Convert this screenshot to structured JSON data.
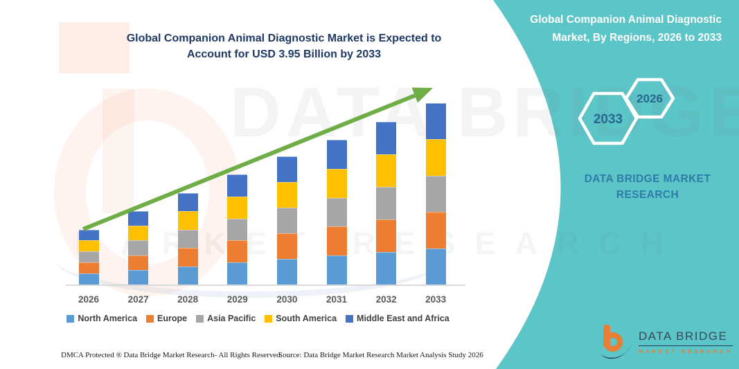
{
  "header": {
    "left_title": "Global Companion Animal Diagnostic Market is Expected to Account for USD 3.95 Billion by 2033",
    "right_title": "Global Companion Animal Diagnostic Market, By Regions, 2026 to 2033"
  },
  "badges": {
    "back_year": "2033",
    "front_year": "2026"
  },
  "brand": {
    "panel_text": "DATA BRIDGE MARKET RESEARCH",
    "logo_title": "DATA BRIDGE",
    "logo_subtitle": "MARKET RESEARCH"
  },
  "watermark": {
    "line1": "DATA BRIDGE",
    "line2": "MARKET RESEARCH"
  },
  "footer": {
    "left": "DMCA Protected ® Data Bridge Market Research-  All Rights Reserved.",
    "source": "Source: Data Bridge Market Research  Market Analysis Study 2026"
  },
  "colors": {
    "teal_panel": "#5BC5C7",
    "title_navy": "#1F3864",
    "hexagon_year": "#27688E",
    "panel_brand_blue": "#2E7CA8",
    "arrow_green": "#6FAE47",
    "axis_gray": "#D9D9D9",
    "logo_orange": "#E87F35",
    "logo_navy": "#203A64"
  },
  "chart_data": {
    "type": "bar",
    "stacked": true,
    "title": "Global Companion Animal Diagnostic Market is Expected to Account for USD 3.95 Billion by 2033",
    "unit": "USD Billion (estimated from bar heights; 2033 total labeled as 3.95)",
    "categories": [
      "2026",
      "2027",
      "2028",
      "2029",
      "2030",
      "2031",
      "2032",
      "2033"
    ],
    "series": [
      {
        "name": "North America",
        "color": "#5B9BD5",
        "values": [
          0.24,
          0.32,
          0.4,
          0.48,
          0.56,
          0.63,
          0.71,
          0.79
        ]
      },
      {
        "name": "Europe",
        "color": "#ED7D31",
        "values": [
          0.24,
          0.32,
          0.4,
          0.48,
          0.56,
          0.63,
          0.71,
          0.79
        ]
      },
      {
        "name": "Asia Pacific",
        "color": "#A6A6A6",
        "values": [
          0.24,
          0.32,
          0.4,
          0.48,
          0.56,
          0.63,
          0.71,
          0.79
        ]
      },
      {
        "name": "South America",
        "color": "#FFC000",
        "values": [
          0.24,
          0.32,
          0.4,
          0.48,
          0.56,
          0.63,
          0.71,
          0.79
        ]
      },
      {
        "name": "Middle East and Africa",
        "color": "#4472C4",
        "values": [
          0.24,
          0.32,
          0.4,
          0.48,
          0.56,
          0.63,
          0.71,
          0.79
        ]
      }
    ],
    "totals_estimated": [
      1.2,
      1.6,
      2.0,
      2.4,
      2.8,
      3.15,
      3.55,
      3.95
    ],
    "xlabel": "",
    "ylabel": "",
    "ylim": [
      0,
      4.4
    ],
    "gridlines": false,
    "y_axis_visible": false,
    "legend_position": "bottom",
    "trend_arrow": true
  }
}
